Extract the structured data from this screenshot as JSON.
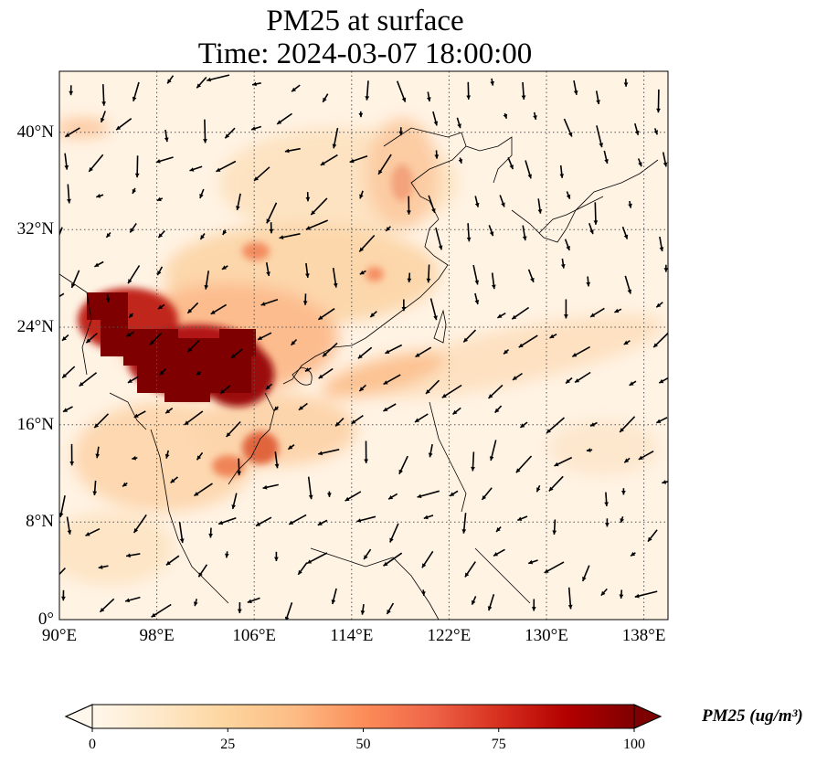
{
  "title": {
    "line1": "PM25 at surface",
    "line2": "Time: 2024-03-07 18:00:00"
  },
  "map": {
    "projection": "PlateCarree",
    "lon_range": [
      90,
      140
    ],
    "lat_range": [
      0,
      45
    ],
    "gridlines": true,
    "gridline_style": "dotted",
    "coastlines": true,
    "vectors": "wind arrows",
    "colormap": "OrRd",
    "x_ticks": [
      "90°E",
      "98°E",
      "106°E",
      "114°E",
      "122°E",
      "130°E",
      "138°E"
    ],
    "x_tick_values": [
      90,
      98,
      106,
      114,
      122,
      130,
      138
    ],
    "y_ticks": [
      "0°",
      "8°N",
      "16°N",
      "24°N",
      "32°N",
      "40°N"
    ],
    "y_tick_values": [
      0,
      8,
      16,
      24,
      32,
      40
    ]
  },
  "colorbar": {
    "label": "PM25 (ug/m³)",
    "ticks": [
      "0",
      "25",
      "50",
      "75",
      "100"
    ],
    "tick_values": [
      0,
      25,
      50,
      75,
      100
    ],
    "range": [
      0,
      100
    ],
    "extend": "both",
    "colors": [
      "#fff7ec",
      "#fee8c8",
      "#fdd49e",
      "#fdbb84",
      "#fc8d59",
      "#ef6548",
      "#d7301f",
      "#b30000",
      "#7f0000"
    ]
  }
}
